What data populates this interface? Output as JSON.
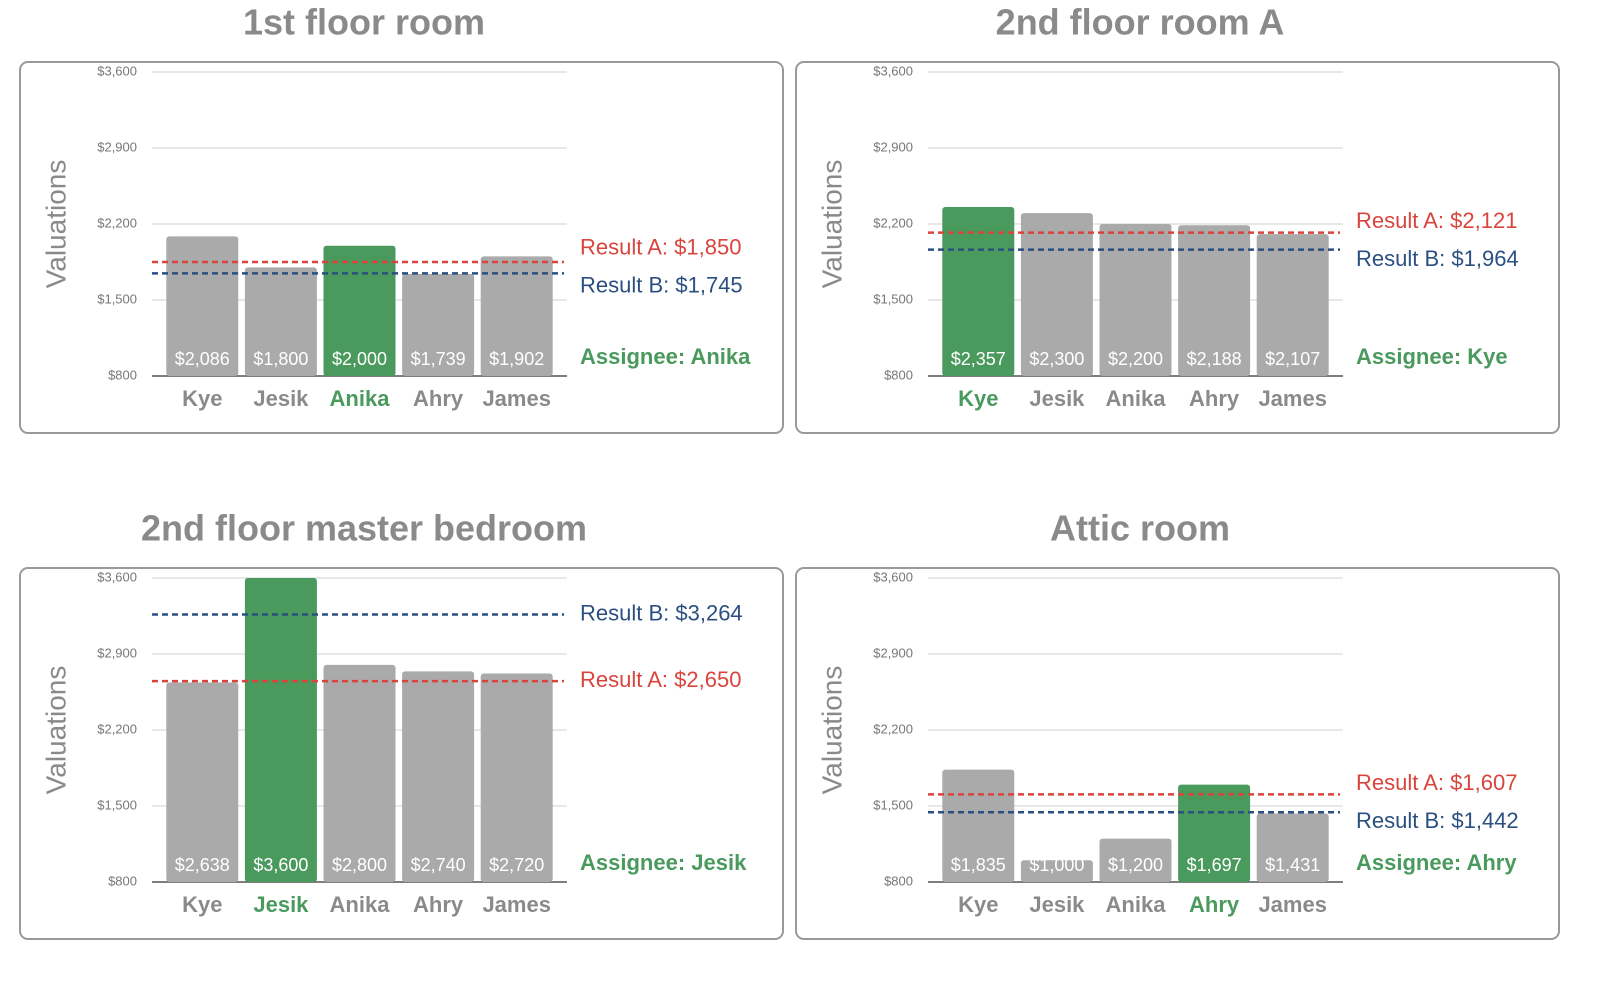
{
  "chart_data": [
    {
      "type": "bar",
      "title": "1st floor room",
      "y_label": "Valuations",
      "categories": [
        "Kye",
        "Jesik",
        "Anika",
        "Ahry",
        "James"
      ],
      "values": [
        2086,
        1800,
        2000,
        1739,
        1902
      ],
      "value_labels": [
        "$2,086",
        "$1,800",
        "$2,000",
        "$1,739",
        "$1,902"
      ],
      "colors": [
        "#aaaaaa",
        "#aaaaaa",
        "#4a9a5e",
        "#aaaaaa",
        "#aaaaaa"
      ],
      "category_colors": [
        "#8a8a8a",
        "#8a8a8a",
        "#4a9a5e",
        "#8a8a8a",
        "#8a8a8a"
      ],
      "ylim": [
        800,
        3600
      ],
      "yticks": [
        {
          "value": 800,
          "label": "$800"
        },
        {
          "value": 1500,
          "label": "$1,500"
        },
        {
          "value": 2200,
          "label": "$2,200"
        },
        {
          "value": 2900,
          "label": "$2,900"
        },
        {
          "value": 3600,
          "label": "$3,600"
        }
      ],
      "grid": true,
      "reference_lines": [
        {
          "label": "Result A: $1,850",
          "value": 1850,
          "color": "#d9443c"
        },
        {
          "label": "Result B: $1,745",
          "value": 1745,
          "color": "#2b4f80"
        }
      ],
      "assignee": {
        "label": "Assignee: Anika",
        "color": "#4a9a5e"
      }
    },
    {
      "type": "bar",
      "title": "2nd floor room A",
      "y_label": "Valuations",
      "categories": [
        "Kye",
        "Jesik",
        "Anika",
        "Ahry",
        "James"
      ],
      "values": [
        2357,
        2300,
        2200,
        2188,
        2107
      ],
      "value_labels": [
        "$2,357",
        "$2,300",
        "$2,200",
        "$2,188",
        "$2,107"
      ],
      "colors": [
        "#4a9a5e",
        "#aaaaaa",
        "#aaaaaa",
        "#aaaaaa",
        "#aaaaaa"
      ],
      "category_colors": [
        "#4a9a5e",
        "#8a8a8a",
        "#8a8a8a",
        "#8a8a8a",
        "#8a8a8a"
      ],
      "ylim": [
        800,
        3600
      ],
      "yticks": [
        {
          "value": 800,
          "label": "$800"
        },
        {
          "value": 1500,
          "label": "$1,500"
        },
        {
          "value": 2200,
          "label": "$2,200"
        },
        {
          "value": 2900,
          "label": "$2,900"
        },
        {
          "value": 3600,
          "label": "$3,600"
        }
      ],
      "grid": true,
      "reference_lines": [
        {
          "label": "Result A: $2,121",
          "value": 2121,
          "color": "#d9443c"
        },
        {
          "label": "Result B: $1,964",
          "value": 1964,
          "color": "#2b4f80"
        }
      ],
      "assignee": {
        "label": "Assignee: Kye",
        "color": "#4a9a5e"
      }
    },
    {
      "type": "bar",
      "title": "2nd floor master bedroom",
      "y_label": "Valuations",
      "categories": [
        "Kye",
        "Jesik",
        "Anika",
        "Ahry",
        "James"
      ],
      "values": [
        2638,
        3600,
        2800,
        2740,
        2720
      ],
      "value_labels": [
        "$2,638",
        "$3,600",
        "$2,800",
        "$2,740",
        "$2,720"
      ],
      "colors": [
        "#aaaaaa",
        "#4a9a5e",
        "#aaaaaa",
        "#aaaaaa",
        "#aaaaaa"
      ],
      "category_colors": [
        "#8a8a8a",
        "#4a9a5e",
        "#8a8a8a",
        "#8a8a8a",
        "#8a8a8a"
      ],
      "ylim": [
        800,
        3600
      ],
      "yticks": [
        {
          "value": 800,
          "label": "$800"
        },
        {
          "value": 1500,
          "label": "$1,500"
        },
        {
          "value": 2200,
          "label": "$2,200"
        },
        {
          "value": 2900,
          "label": "$2,900"
        },
        {
          "value": 3600,
          "label": "$3,600"
        }
      ],
      "grid": true,
      "reference_lines": [
        {
          "label": "Result B: $3,264",
          "value": 3264,
          "color": "#2b4f80"
        },
        {
          "label": "Result A: $2,650",
          "value": 2650,
          "color": "#d9443c"
        }
      ],
      "assignee": {
        "label": "Assignee: Jesik",
        "color": "#4a9a5e"
      }
    },
    {
      "type": "bar",
      "title": "Attic room",
      "y_label": "Valuations",
      "categories": [
        "Kye",
        "Jesik",
        "Anika",
        "Ahry",
        "James"
      ],
      "values": [
        1835,
        1000,
        1200,
        1697,
        1431
      ],
      "value_labels": [
        "$1,835",
        "$1,000",
        "$1,200",
        "$1,697",
        "$1,431"
      ],
      "colors": [
        "#aaaaaa",
        "#aaaaaa",
        "#aaaaaa",
        "#4a9a5e",
        "#aaaaaa"
      ],
      "category_colors": [
        "#8a8a8a",
        "#8a8a8a",
        "#8a8a8a",
        "#4a9a5e",
        "#8a8a8a"
      ],
      "ylim": [
        800,
        3600
      ],
      "yticks": [
        {
          "value": 800,
          "label": "$800"
        },
        {
          "value": 1500,
          "label": "$1,500"
        },
        {
          "value": 2200,
          "label": "$2,200"
        },
        {
          "value": 2900,
          "label": "$2,900"
        },
        {
          "value": 3600,
          "label": "$3,600"
        }
      ],
      "grid": true,
      "reference_lines": [
        {
          "label": "Result A: $1,607",
          "value": 1607,
          "color": "#d9443c"
        },
        {
          "label": "Result B: $1,442",
          "value": 1442,
          "color": "#2b4f80"
        }
      ],
      "assignee": {
        "label": "Assignee: Ahry",
        "color": "#4a9a5e"
      }
    }
  ]
}
